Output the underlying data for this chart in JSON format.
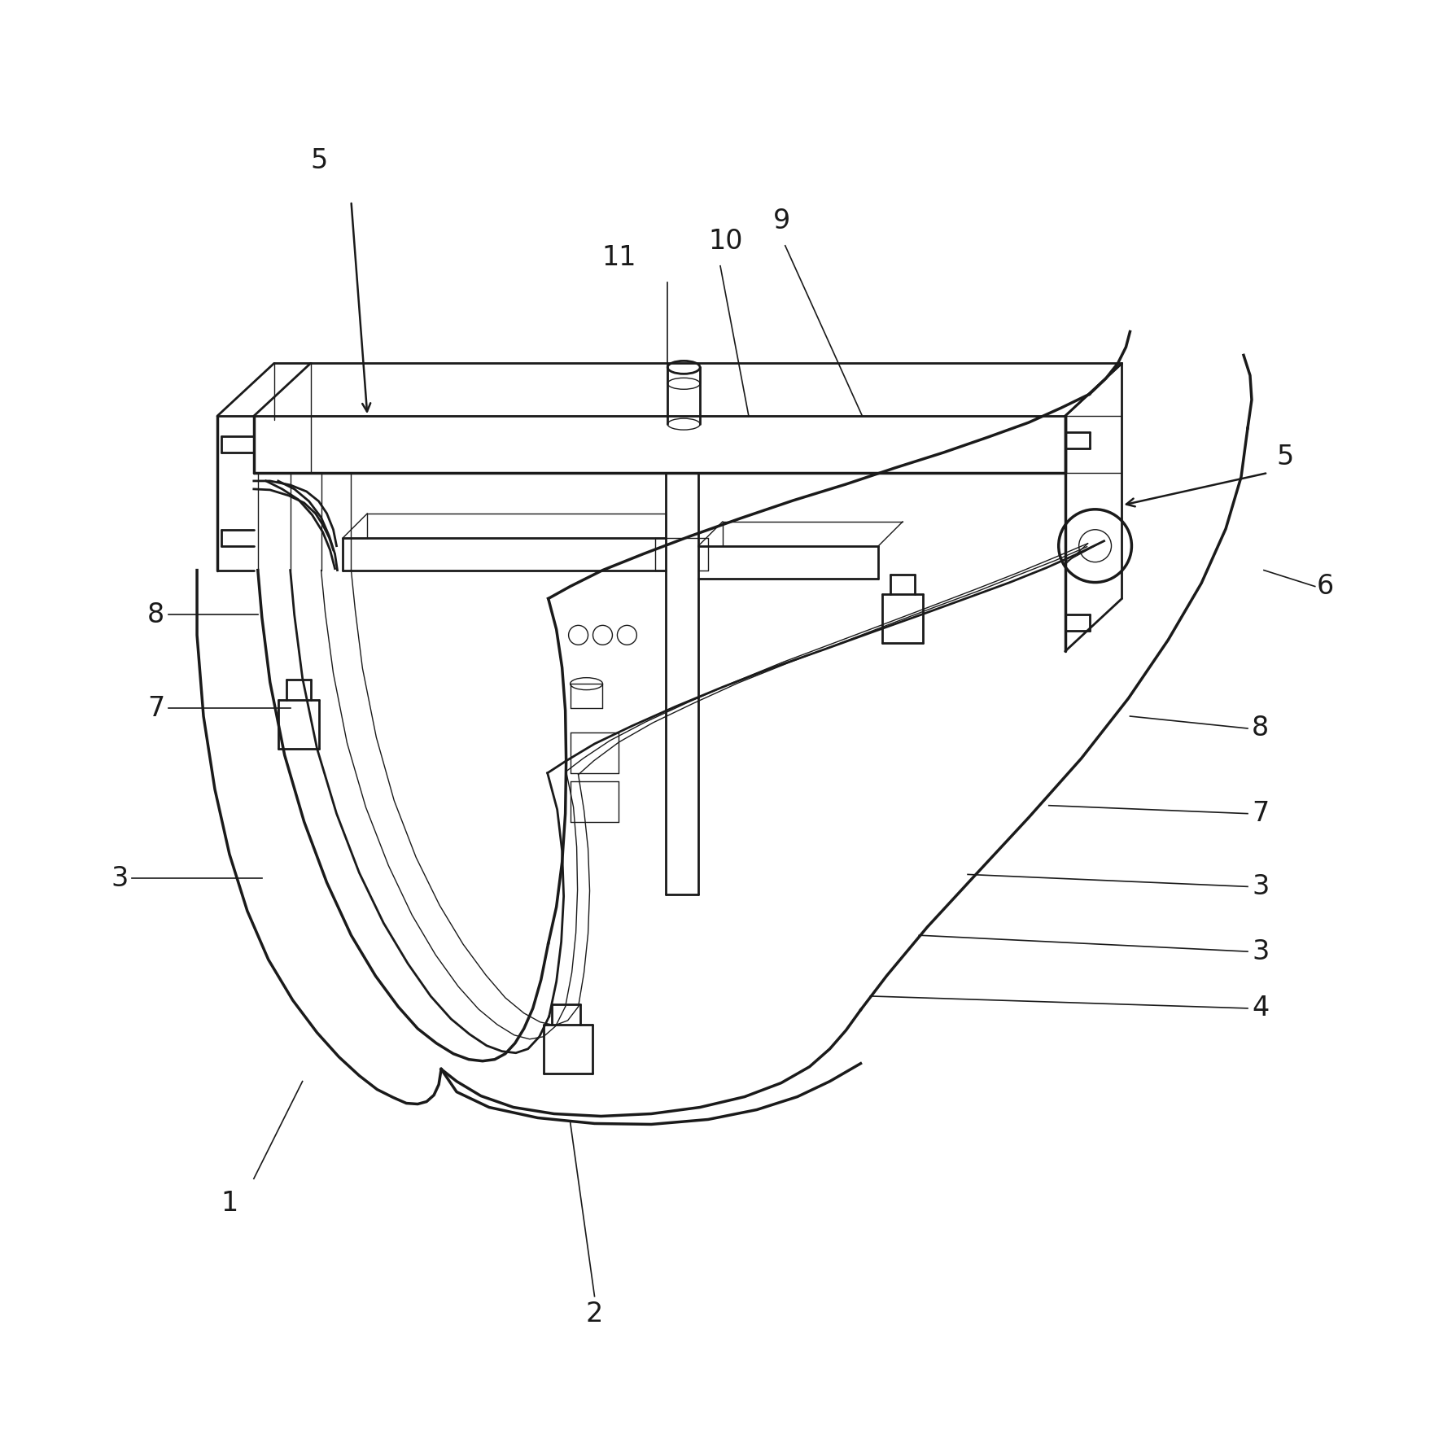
{
  "background_color": "#ffffff",
  "line_color": "#1a1a1a",
  "lw_main": 2.0,
  "lw_thin": 1.0,
  "lw_thick": 2.5,
  "fig_width": 17.89,
  "fig_height": 17.73,
  "label_fontsize": 24
}
